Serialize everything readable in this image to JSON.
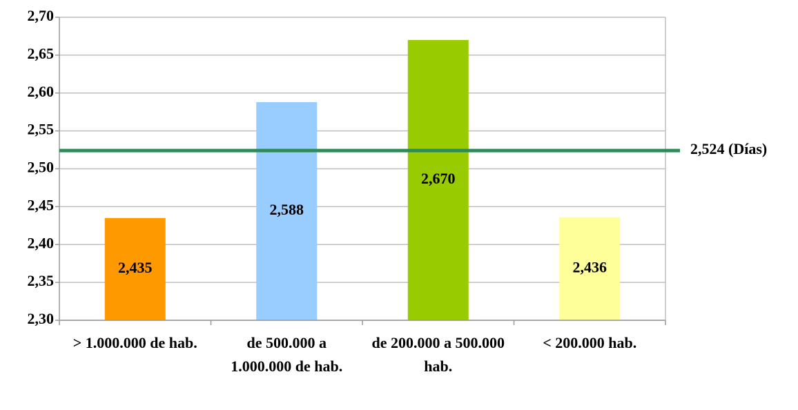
{
  "chart_data": {
    "type": "bar",
    "categories": [
      "> 1.000.000 de hab.",
      "de 500.000 a 1.000.000 de hab.",
      "de 200.000 a 500.000 hab.",
      "< 200.000 hab."
    ],
    "values": [
      2.435,
      2.588,
      2.67,
      2.436
    ],
    "value_labels": [
      "2,435",
      "2,588",
      "2,670",
      "2,436"
    ],
    "colors": [
      "#ff9900",
      "#99ccff",
      "#99cc00",
      "#ffff99"
    ],
    "ylim": [
      2.3,
      2.7
    ],
    "yticks": [
      {
        "value": 2.3,
        "label": "2,30"
      },
      {
        "value": 2.35,
        "label": "2,35"
      },
      {
        "value": 2.4,
        "label": "2,40"
      },
      {
        "value": 2.45,
        "label": "2,45"
      },
      {
        "value": 2.5,
        "label": "2,50"
      },
      {
        "value": 2.55,
        "label": "2,55"
      },
      {
        "value": 2.6,
        "label": "2,60"
      },
      {
        "value": 2.65,
        "label": "2,65"
      },
      {
        "value": 2.7,
        "label": "2,70"
      }
    ],
    "grid": true,
    "reference_line": {
      "value": 2.524,
      "label": "2,524 (Días)",
      "color": "#2e8b57"
    }
  }
}
